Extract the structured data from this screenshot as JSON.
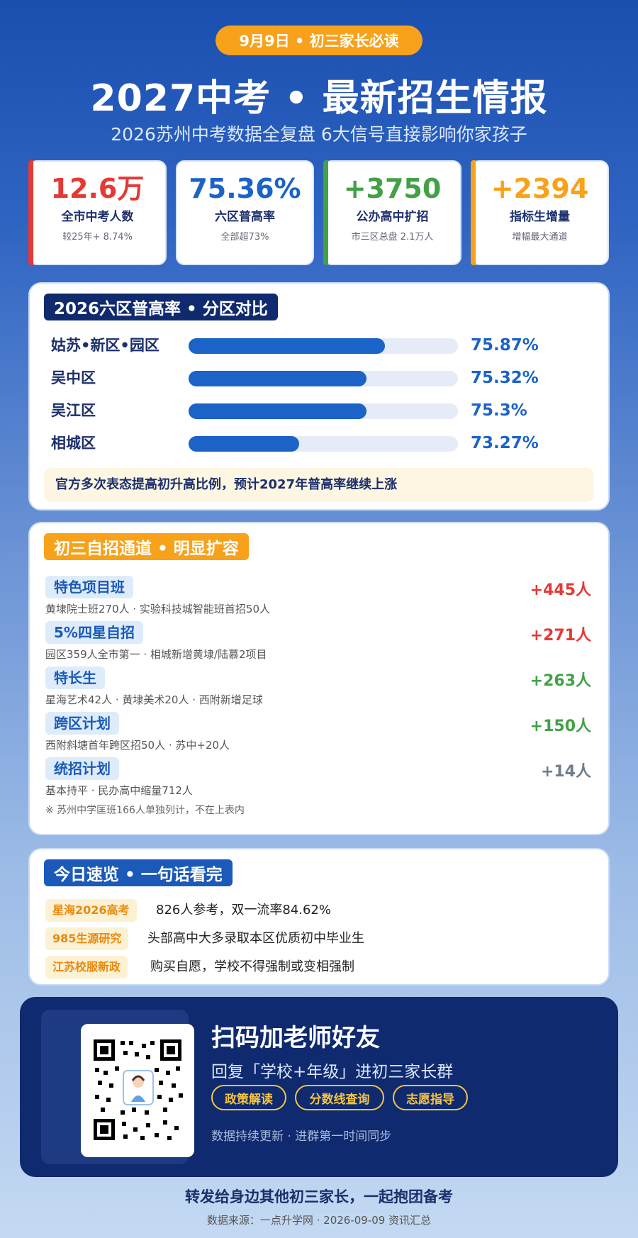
{
  "header": {
    "badge": "9月9日 • 初三家长必读",
    "title": "2027中考 • 最新招生情报",
    "subtitle": "2026苏州中考数据全复盘 6大信号直接影响你家孩子"
  },
  "stats": [
    {
      "value": "12.6万",
      "label": "全市中考人数",
      "note": "较25年+ 8.74%",
      "color": "#e53935"
    },
    {
      "value": "75.36%",
      "label": "六区普高率",
      "note": "全部超73%",
      "color": "#1b63c6"
    },
    {
      "value": "+3750",
      "label": "公办高中扩招",
      "note": "市三区总盘 2.1万人",
      "color": "#43a047"
    },
    {
      "value": "+2394",
      "label": "指标生增量",
      "note": "增幅最大通道",
      "color": "#f7a21a"
    }
  ],
  "rates": {
    "tag": "2026六区普高率 • 分区对比",
    "rows": [
      {
        "name": "姑苏•新区•园区",
        "pct_label": "75.87%"
      },
      {
        "name": "吴中区",
        "pct_label": "75.32%"
      },
      {
        "name": "吴江区",
        "pct_label": "75.3%"
      },
      {
        "name": "相城区",
        "pct_label": "73.27%"
      }
    ],
    "fill_fraction": [
      0.73,
      0.66,
      0.66,
      0.41
    ],
    "note": "官方多次表态提高初升高比例，预计2027年普高率继续上涨"
  },
  "channels": {
    "tag": "初三自招通道 • 明显扩容",
    "rows": [
      {
        "name": "特色项目班",
        "desc": "黄埭院士班270人 · 实验科技城智能班首招50人",
        "value": "+445人",
        "color": "#e53935"
      },
      {
        "name": "5%四星自招",
        "desc": "园区359人全市第一 · 相城新增黄埭/陆慕2项目",
        "value": "+271人",
        "color": "#e53935"
      },
      {
        "name": "特长生",
        "desc": "星海艺术42人 · 黄埭美术20人 · 西附新增足球",
        "value": "+263人",
        "color": "#43a047"
      },
      {
        "name": "跨区计划",
        "desc": "西附斜塘首年跨区招50人 · 苏中+20人",
        "value": "+150人",
        "color": "#43a047"
      },
      {
        "name": "统招计划",
        "desc": "基本持平 · 民办高中缩量712人",
        "value": "+14人",
        "color": "#6f7c8c"
      }
    ],
    "footnote": "※ 苏州中学匡班166人单独列计，不在上表内"
  },
  "quick": {
    "tag": "今日速览 • 一句话看完",
    "rows": [
      {
        "tag": "星海2026高考",
        "text": "826人参考，双一流率84.62%"
      },
      {
        "tag": "985生源研究",
        "text": "头部高中大多录取本区优质初中毕业生"
      },
      {
        "tag": "江苏校服新政",
        "text": "购买自愿，学校不得强制或变相强制"
      }
    ]
  },
  "qr": {
    "title": "扫码加老师好友",
    "subtitle": "回复「学校+年级」进初三家长群",
    "pills": [
      "政策解读",
      "分数线查询",
      "志愿指导"
    ],
    "footer": "数据持续更新 · 进群第一时间同步"
  },
  "footer": {
    "share": "转发给身边其他初三家长，一起抱团备考",
    "source": "数据来源：一点升学网 · 2026-09-09 资讯汇总"
  }
}
